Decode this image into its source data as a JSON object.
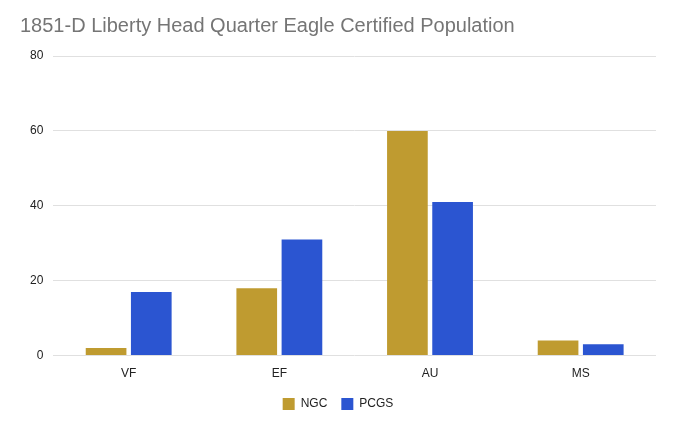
{
  "chart_data": {
    "type": "bar",
    "title": "1851-D Liberty Head Quarter Eagle Certified Population",
    "categories": [
      "VF",
      "EF",
      "AU",
      "MS"
    ],
    "series": [
      {
        "name": "NGC",
        "color": "#bf9b30",
        "values": [
          2,
          18,
          60,
          4
        ]
      },
      {
        "name": "PCGS",
        "color": "#2b55d1",
        "values": [
          17,
          31,
          41,
          3
        ]
      }
    ],
    "ylim": [
      0,
      80
    ],
    "yticks": [
      0,
      20,
      40,
      60,
      80
    ],
    "grid": true,
    "legend": "bottom"
  }
}
